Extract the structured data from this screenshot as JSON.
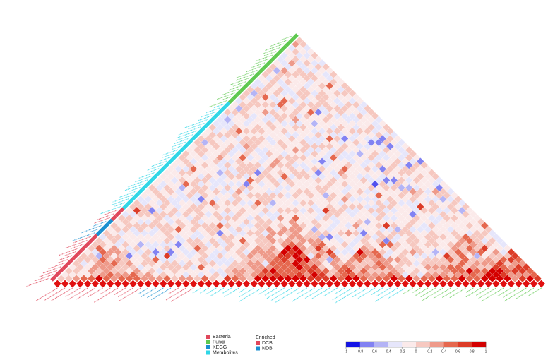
{
  "chart_data": {
    "type": "heatmap",
    "layout": "lower-triangle correlation matrix rotated 45 degrees, labels along the diagonal edge and bottom edge",
    "ticks": [
      -1,
      -0.8,
      -0.6,
      -0.4,
      -0.2,
      0,
      0.2,
      0.4,
      0.6,
      0.8,
      1
    ],
    "scale": [
      "#1414e6",
      "#5050ee",
      "#8282f2",
      "#b4b4f6",
      "#e6e6fb",
      "#fbeaea",
      "#f6c8c0",
      "#ee9a8a",
      "#e5684f",
      "#dc3c28",
      "#d40000"
    ],
    "color_range": [
      -1,
      1
    ],
    "categories": [
      {
        "name": "Bacteria",
        "color": "#e0475b"
      },
      {
        "name": "Fungi",
        "color": "#5ec84f"
      },
      {
        "name": "KEGG",
        "color": "#1a8fd0"
      },
      {
        "name": "Metabolites",
        "color": "#2fd6e6"
      }
    ],
    "variable_groups": [
      {
        "category": "Bacteria",
        "count": 12
      },
      {
        "category": "KEGG",
        "count": 4
      },
      {
        "category": "Bacteria",
        "count": 3
      },
      {
        "category": "Metabolites",
        "count": 28
      },
      {
        "category": "Fungi",
        "count": 18
      }
    ],
    "enriched": [
      {
        "name": "DCB",
        "color": "#e0475b"
      },
      {
        "name": "NDB",
        "color": "#1a8fd0"
      }
    ],
    "enriched_marker_color": "#e01010"
  },
  "legend": {
    "category_title": "",
    "category_items": [
      {
        "label": "Bacteria",
        "color": "#e0475b"
      },
      {
        "label": "Fungi",
        "color": "#5ec84f"
      },
      {
        "label": "KEGG",
        "color": "#1a8fd0"
      },
      {
        "label": "Metabolites",
        "color": "#2fd6e6"
      }
    ],
    "enriched_title": "Enriched",
    "enriched_items": [
      {
        "label": "DCB",
        "color": "#e0475b"
      },
      {
        "label": "NDB",
        "color": "#1a8fd0"
      }
    ]
  }
}
